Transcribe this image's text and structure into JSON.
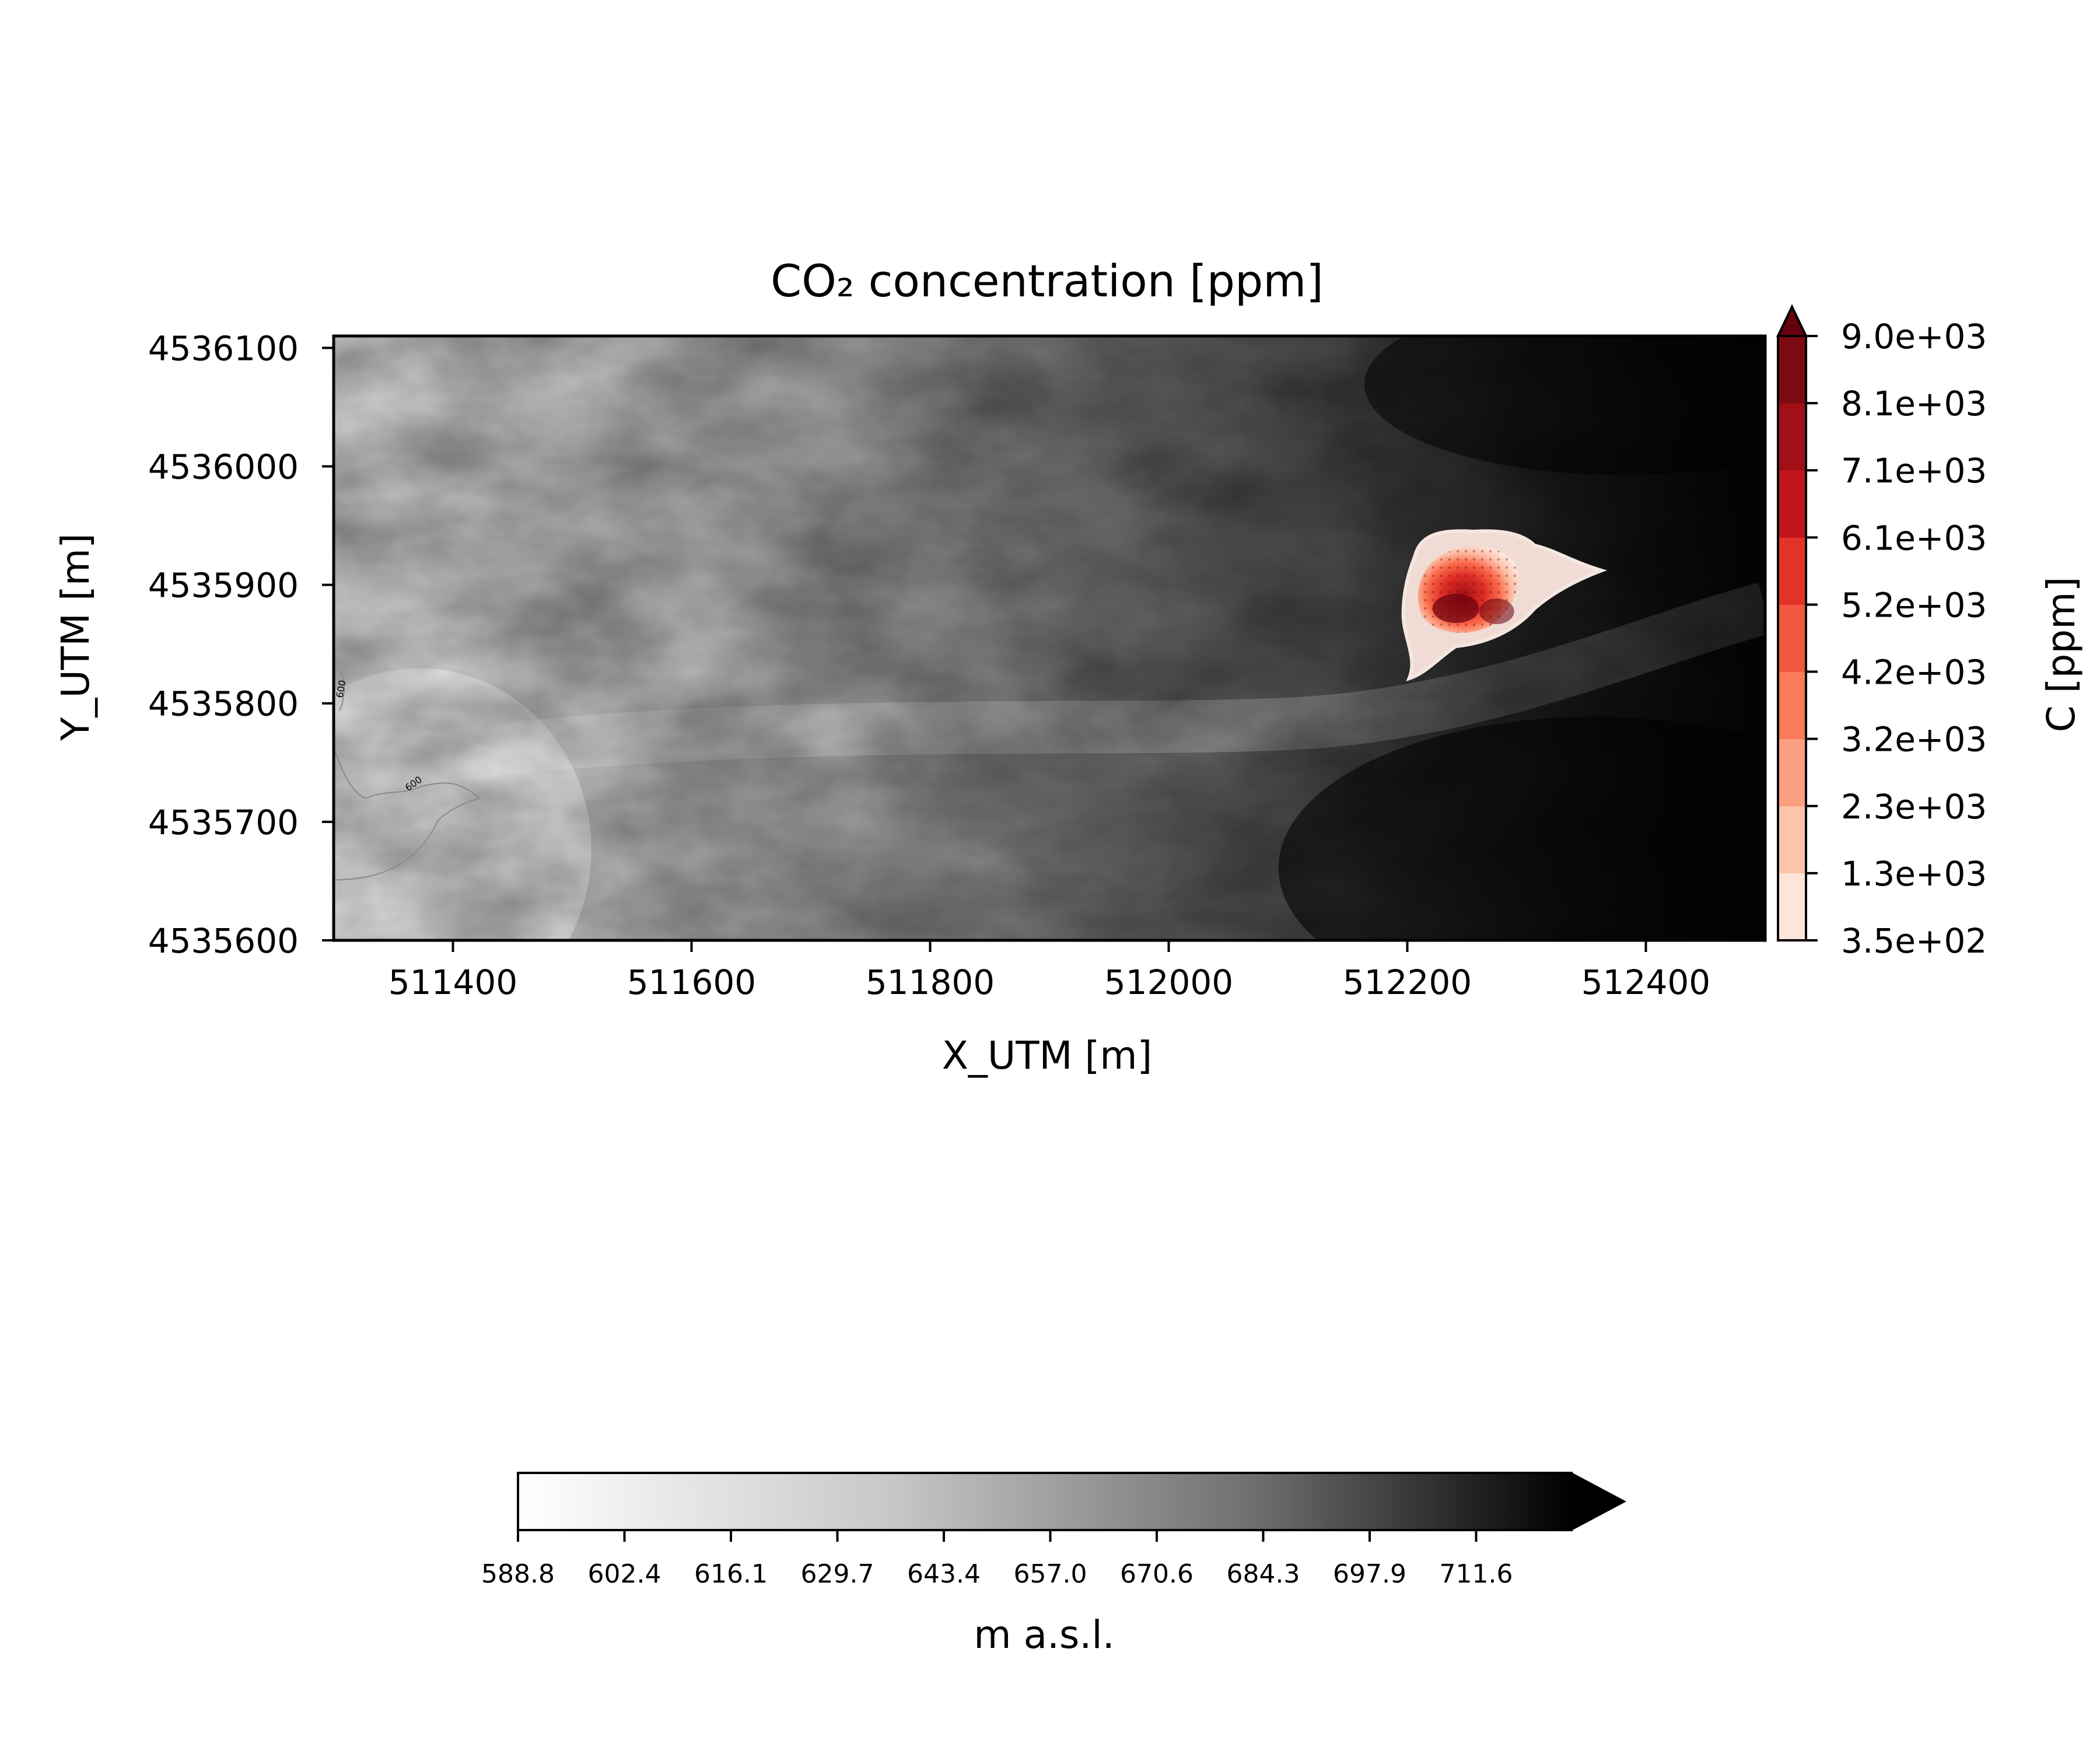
{
  "chart_data": {
    "type": "heatmap",
    "title": "CO₂ concentration [ppm]",
    "xlabel": "X_UTM [m]",
    "ylabel": "Y_UTM [m]",
    "xlim": [
      511300,
      512500
    ],
    "ylim": [
      4535600,
      4536110
    ],
    "x_ticks": [
      511400,
      511600,
      511800,
      512000,
      512200,
      512400
    ],
    "y_ticks": [
      4535600,
      4535700,
      4535800,
      4535900,
      4536000,
      4536100
    ],
    "terrain": {
      "colormap": "Greys",
      "colorbar_label": "m a.s.l.",
      "colorbar_ticks": [
        "588.8",
        "602.4",
        "616.1",
        "629.7",
        "643.4",
        "657.0",
        "670.6",
        "684.3",
        "697.9",
        "711.6"
      ],
      "colorbar_extend": "max",
      "contour_level": "600",
      "contour_labels": [
        "600",
        "600"
      ]
    },
    "co2": {
      "colormap": "Reds",
      "colorbar_label": "C [ppm]",
      "colorbar_ticks": [
        "3.5e+02",
        "1.3e+03",
        "2.3e+03",
        "3.2e+03",
        "4.2e+03",
        "5.2e+03",
        "6.1e+03",
        "7.1e+03",
        "8.1e+03",
        "9.0e+03"
      ],
      "colorbar_extend": "max",
      "band_colors": [
        "#fee5d9",
        "#fcc5ab",
        "#fc9f81",
        "#fb7b5b",
        "#f3573f",
        "#e13327",
        "#c3161b",
        "#a11016",
        "#7c0a12"
      ],
      "extend_color": "#67000d",
      "plume_center": [
        512270,
        4535885
      ]
    },
    "grid": false
  }
}
